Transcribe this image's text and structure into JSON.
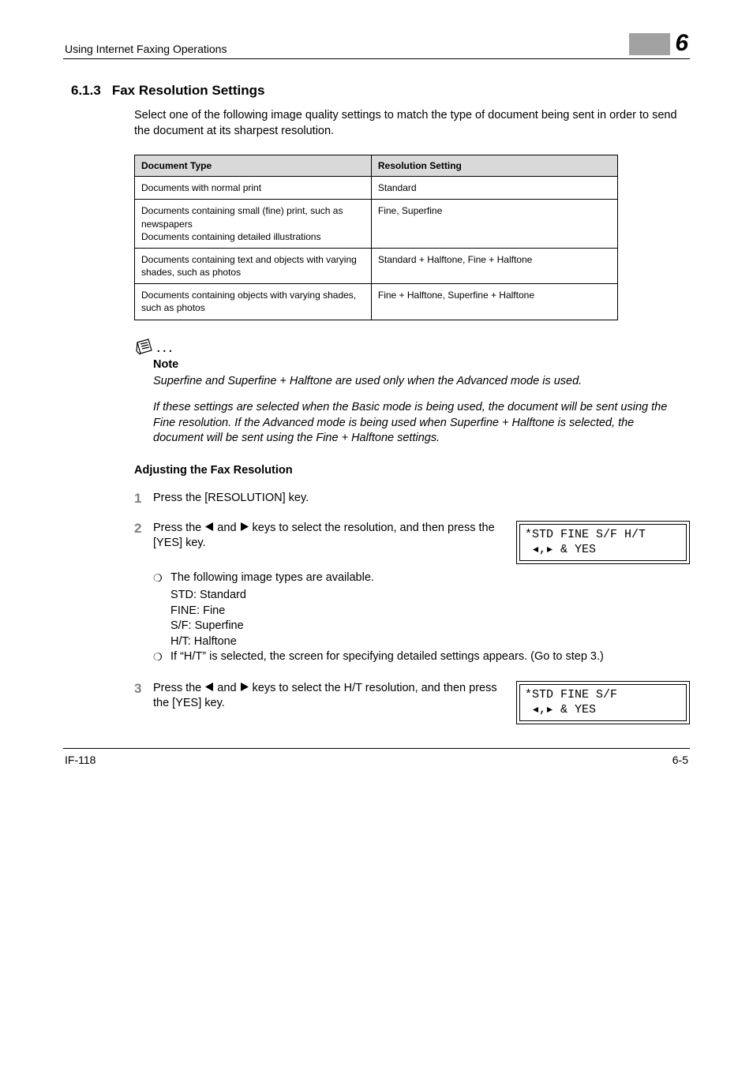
{
  "header": {
    "running_title": "Using Internet Faxing Operations",
    "chapter_number": "6"
  },
  "section": {
    "number": "6.1.3",
    "title": "Fax Resolution Settings",
    "intro": "Select one of the following image quality settings to match the type of document being sent in order to send the document at its sharpest resolution."
  },
  "table": {
    "columns": [
      "Document Type",
      "Resolution Setting"
    ],
    "rows": [
      [
        "Documents with normal print",
        "Standard"
      ],
      [
        "Documents containing small (fine) print, such as newspapers\nDocuments containing detailed illustrations",
        "Fine, Superfine"
      ],
      [
        "Documents containing text and objects with varying shades, such as photos",
        "Standard + Halftone, Fine + Halftone"
      ],
      [
        "Documents containing objects with varying shades, such as photos",
        "Fine + Halftone, Superfine + Halftone"
      ]
    ],
    "header_bg": "#d9d9d9",
    "border_color": "#000000"
  },
  "note": {
    "label": "Note",
    "paragraphs": [
      "Superfine and Superfine + Halftone are used only when the Advanced mode is used.",
      "If these settings are selected when the Basic mode is being used, the document will be sent using the Fine resolution. If the Advanced mode is being used when Superfine + Halftone is selected, the document will be sent using the Fine + Halftone settings."
    ]
  },
  "procedure": {
    "heading": "Adjusting the Fax Resolution",
    "steps": [
      {
        "num": "1",
        "text": "Press the [RESOLUTION] key."
      },
      {
        "num": "2",
        "text_pre": "Press the ",
        "text_mid": " and ",
        "text_post": " keys to select the resolution, and then press the [YES] key.",
        "lcd": {
          "line1": "*STD FINE S/F H/T",
          "line2_prefix": " ",
          "line2_suffix": " & YES"
        },
        "subitems": [
          {
            "lead": "The following image types are available.",
            "lines": [
              "STD: Standard",
              "FINE: Fine",
              "S/F: Superfine",
              "H/T: Halftone"
            ]
          },
          {
            "lead": "If “H/T” is selected, the screen for specifying detailed settings appears. (Go to step 3.)"
          }
        ]
      },
      {
        "num": "3",
        "text_pre": "Press the ",
        "text_mid": " and ",
        "text_post": " keys to select the H/T resolution, and then press the [YES] key.",
        "lcd": {
          "line1": "*STD FINE S/F",
          "line2_prefix": " ",
          "line2_suffix": " & YES"
        }
      }
    ]
  },
  "footer": {
    "left": "IF-118",
    "right": "6-5"
  },
  "colors": {
    "step_number": "#808080",
    "chapter_gray": "#a2a2a2"
  }
}
